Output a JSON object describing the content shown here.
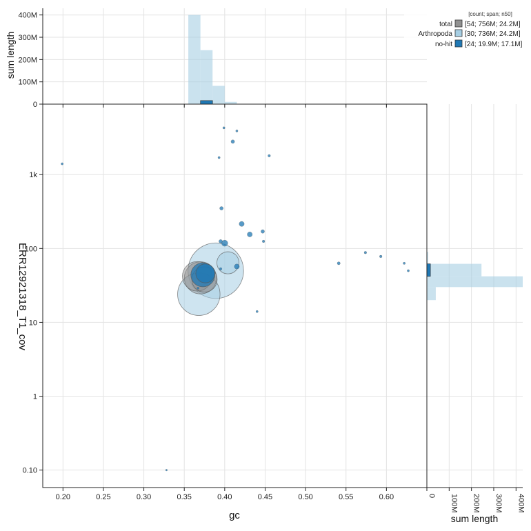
{
  "chart_data": {
    "type": "scatter",
    "xlabel": "gc",
    "ylabel": "ERR12921318_T1_cov",
    "x_ticks": [
      "0.20",
      "0.25",
      "0.30",
      "0.35",
      "0.40",
      "0.45",
      "0.50",
      "0.55",
      "0.60"
    ],
    "y_ticks": [
      "0.10",
      "1",
      "10",
      "100",
      "1k"
    ],
    "y_scale": "log",
    "xlim": [
      0.175,
      0.65
    ],
    "ylim": [
      0.058,
      9000
    ],
    "grid": true,
    "legend": {
      "placement": "top-right",
      "header": "[count; span; n50]",
      "entries": [
        {
          "name": "total",
          "stats": "[54; 756M; 24.2M]",
          "color": "#909090"
        },
        {
          "name": "Arthropoda",
          "stats": "[30; 736M; 24.2M]",
          "color": "#a6cee3"
        },
        {
          "name": "no-hit",
          "stats": "[24; 19.9M; 17.1M]",
          "color": "#1f78b4"
        }
      ]
    },
    "colors": {
      "total": "#909090",
      "arthropoda": "#a6cee3",
      "nohit": "#1f78b4"
    },
    "points": [
      {
        "gc": 0.389,
        "cov": 50,
        "span_mb": 240,
        "group": "Arthropoda"
      },
      {
        "gc": 0.368,
        "cov": 24,
        "span_mb": 140,
        "group": "Arthropoda"
      },
      {
        "gc": 0.404,
        "cov": 64,
        "span_mb": 38,
        "group": "Arthropoda"
      },
      {
        "gc": 0.366,
        "cov": 42,
        "span_mb": 68,
        "group": "total"
      },
      {
        "gc": 0.37,
        "cov": 40,
        "span_mb": 80,
        "group": "total"
      },
      {
        "gc": 0.375,
        "cov": 38,
        "span_mb": 50,
        "group": "total"
      },
      {
        "gc": 0.373,
        "cov": 44,
        "span_mb": 45,
        "group": "no-hit"
      },
      {
        "gc": 0.376,
        "cov": 46,
        "span_mb": 28,
        "group": "no-hit"
      },
      {
        "gc": 0.4,
        "cov": 118,
        "span_mb": 3,
        "group": "no-hit"
      },
      {
        "gc": 0.396,
        "cov": 350,
        "span_mb": 1,
        "group": "no-hit"
      },
      {
        "gc": 0.421,
        "cov": 215,
        "span_mb": 2,
        "group": "no-hit"
      },
      {
        "gc": 0.431,
        "cov": 155,
        "span_mb": 2,
        "group": "no-hit"
      },
      {
        "gc": 0.447,
        "cov": 170,
        "span_mb": 1,
        "group": "no-hit"
      },
      {
        "gc": 0.448,
        "cov": 125,
        "span_mb": 0.5,
        "group": "no-hit"
      },
      {
        "gc": 0.395,
        "cov": 125,
        "span_mb": 1,
        "group": "no-hit"
      },
      {
        "gc": 0.415,
        "cov": 57,
        "span_mb": 2,
        "group": "no-hit"
      },
      {
        "gc": 0.395,
        "cov": 53,
        "span_mb": 0.5,
        "group": "no-hit"
      },
      {
        "gc": 0.399,
        "cov": 4300,
        "span_mb": 0.4,
        "group": "no-hit"
      },
      {
        "gc": 0.415,
        "cov": 3900,
        "span_mb": 0.4,
        "group": "no-hit"
      },
      {
        "gc": 0.41,
        "cov": 2800,
        "span_mb": 1,
        "group": "no-hit"
      },
      {
        "gc": 0.393,
        "cov": 1700,
        "span_mb": 0.4,
        "group": "no-hit"
      },
      {
        "gc": 0.455,
        "cov": 1800,
        "span_mb": 0.5,
        "group": "no-hit"
      },
      {
        "gc": 0.199,
        "cov": 1400,
        "span_mb": 0.4,
        "group": "no-hit"
      },
      {
        "gc": 0.44,
        "cov": 14,
        "span_mb": 0.4,
        "group": "no-hit"
      },
      {
        "gc": 0.541,
        "cov": 63,
        "span_mb": 0.7,
        "group": "no-hit"
      },
      {
        "gc": 0.574,
        "cov": 88,
        "span_mb": 0.5,
        "group": "no-hit"
      },
      {
        "gc": 0.593,
        "cov": 78,
        "span_mb": 0.5,
        "group": "no-hit"
      },
      {
        "gc": 0.622,
        "cov": 63,
        "span_mb": 0.4,
        "group": "no-hit"
      },
      {
        "gc": 0.627,
        "cov": 50,
        "span_mb": 0.4,
        "group": "no-hit"
      },
      {
        "gc": 0.328,
        "cov": 0.1,
        "span_mb": 0.2,
        "group": "no-hit"
      },
      {
        "gc": 0.367,
        "cov": 29,
        "span_mb": 0.4,
        "group": "no-hit"
      }
    ],
    "top_hist": {
      "ylabel": "sum length",
      "y_ticks": [
        "0",
        "100M",
        "200M",
        "300M",
        "400M"
      ],
      "ymax": 430,
      "bin_edges": [
        0.355,
        0.37,
        0.385,
        0.4,
        0.415
      ],
      "arthropoda_mb": [
        400,
        242,
        82,
        10
      ],
      "nohit_bin": [
        0.37,
        0.385
      ],
      "nohit_mb": 16
    },
    "right_hist": {
      "xlabel": "sum length",
      "x_ticks": [
        "0",
        "100M",
        "200M",
        "300M",
        "400M"
      ],
      "xmax": 430,
      "bins": [
        {
          "cov_lo": 20,
          "cov_hi": 30,
          "mb": 40
        },
        {
          "cov_lo": 30,
          "cov_hi": 42,
          "mb": 440
        },
        {
          "cov_lo": 42,
          "cov_hi": 62,
          "mb": 245
        },
        {
          "cov_lo": 62,
          "cov_hi": 90,
          "mb": 6
        }
      ],
      "nohit_bin": {
        "cov_lo": 42,
        "cov_hi": 62,
        "mb": 16
      }
    }
  }
}
